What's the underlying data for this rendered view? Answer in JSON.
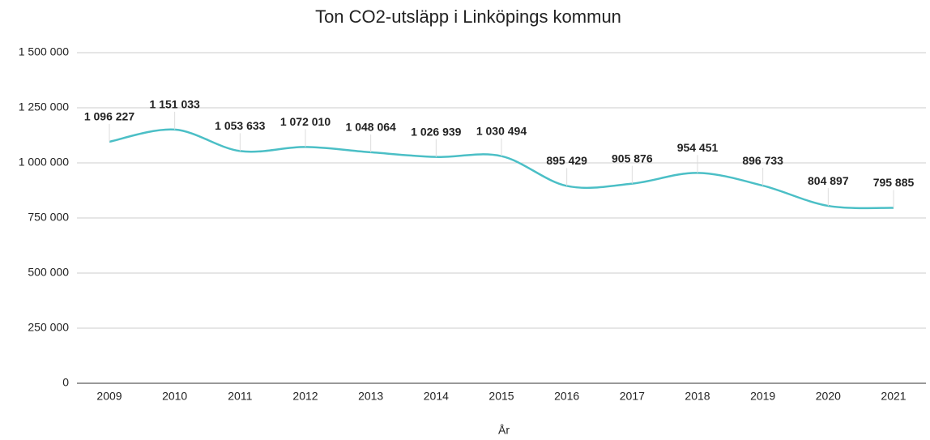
{
  "chart_data": {
    "type": "line",
    "title": "Ton CO2-utsläpp i Linköpings kommun",
    "x_label": "År",
    "categories": [
      "2009",
      "2010",
      "2011",
      "2012",
      "2013",
      "2014",
      "2015",
      "2016",
      "2017",
      "2018",
      "2019",
      "2020",
      "2021"
    ],
    "series": [
      {
        "name": "Ton CO2",
        "color": "#4bbfc6",
        "values": [
          1096227,
          1151033,
          1053633,
          1072010,
          1048064,
          1026939,
          1030494,
          895429,
          905876,
          954451,
          896733,
          804897,
          795885
        ],
        "value_labels": [
          "1 096 227",
          "1 151 033",
          "1 053 633",
          "1 072 010",
          "1 048 064",
          "1 026 939",
          "1 030 494",
          "895 429",
          "905 876",
          "954 451",
          "896 733",
          "804 897",
          "795 885"
        ]
      }
    ],
    "ylim": [
      0,
      1500000
    ],
    "yticks": [
      0,
      {
        "value": 250000,
        "label": "250 000"
      },
      {
        "value": 500000,
        "label": "500 000"
      },
      {
        "value": 750000,
        "label": "750 000"
      },
      {
        "value": 1000000,
        "label": "1 000 000"
      },
      {
        "value": 1250000,
        "label": "1 250 000"
      },
      {
        "value": 1500000,
        "label": "1 500 000"
      }
    ],
    "grid": true
  }
}
